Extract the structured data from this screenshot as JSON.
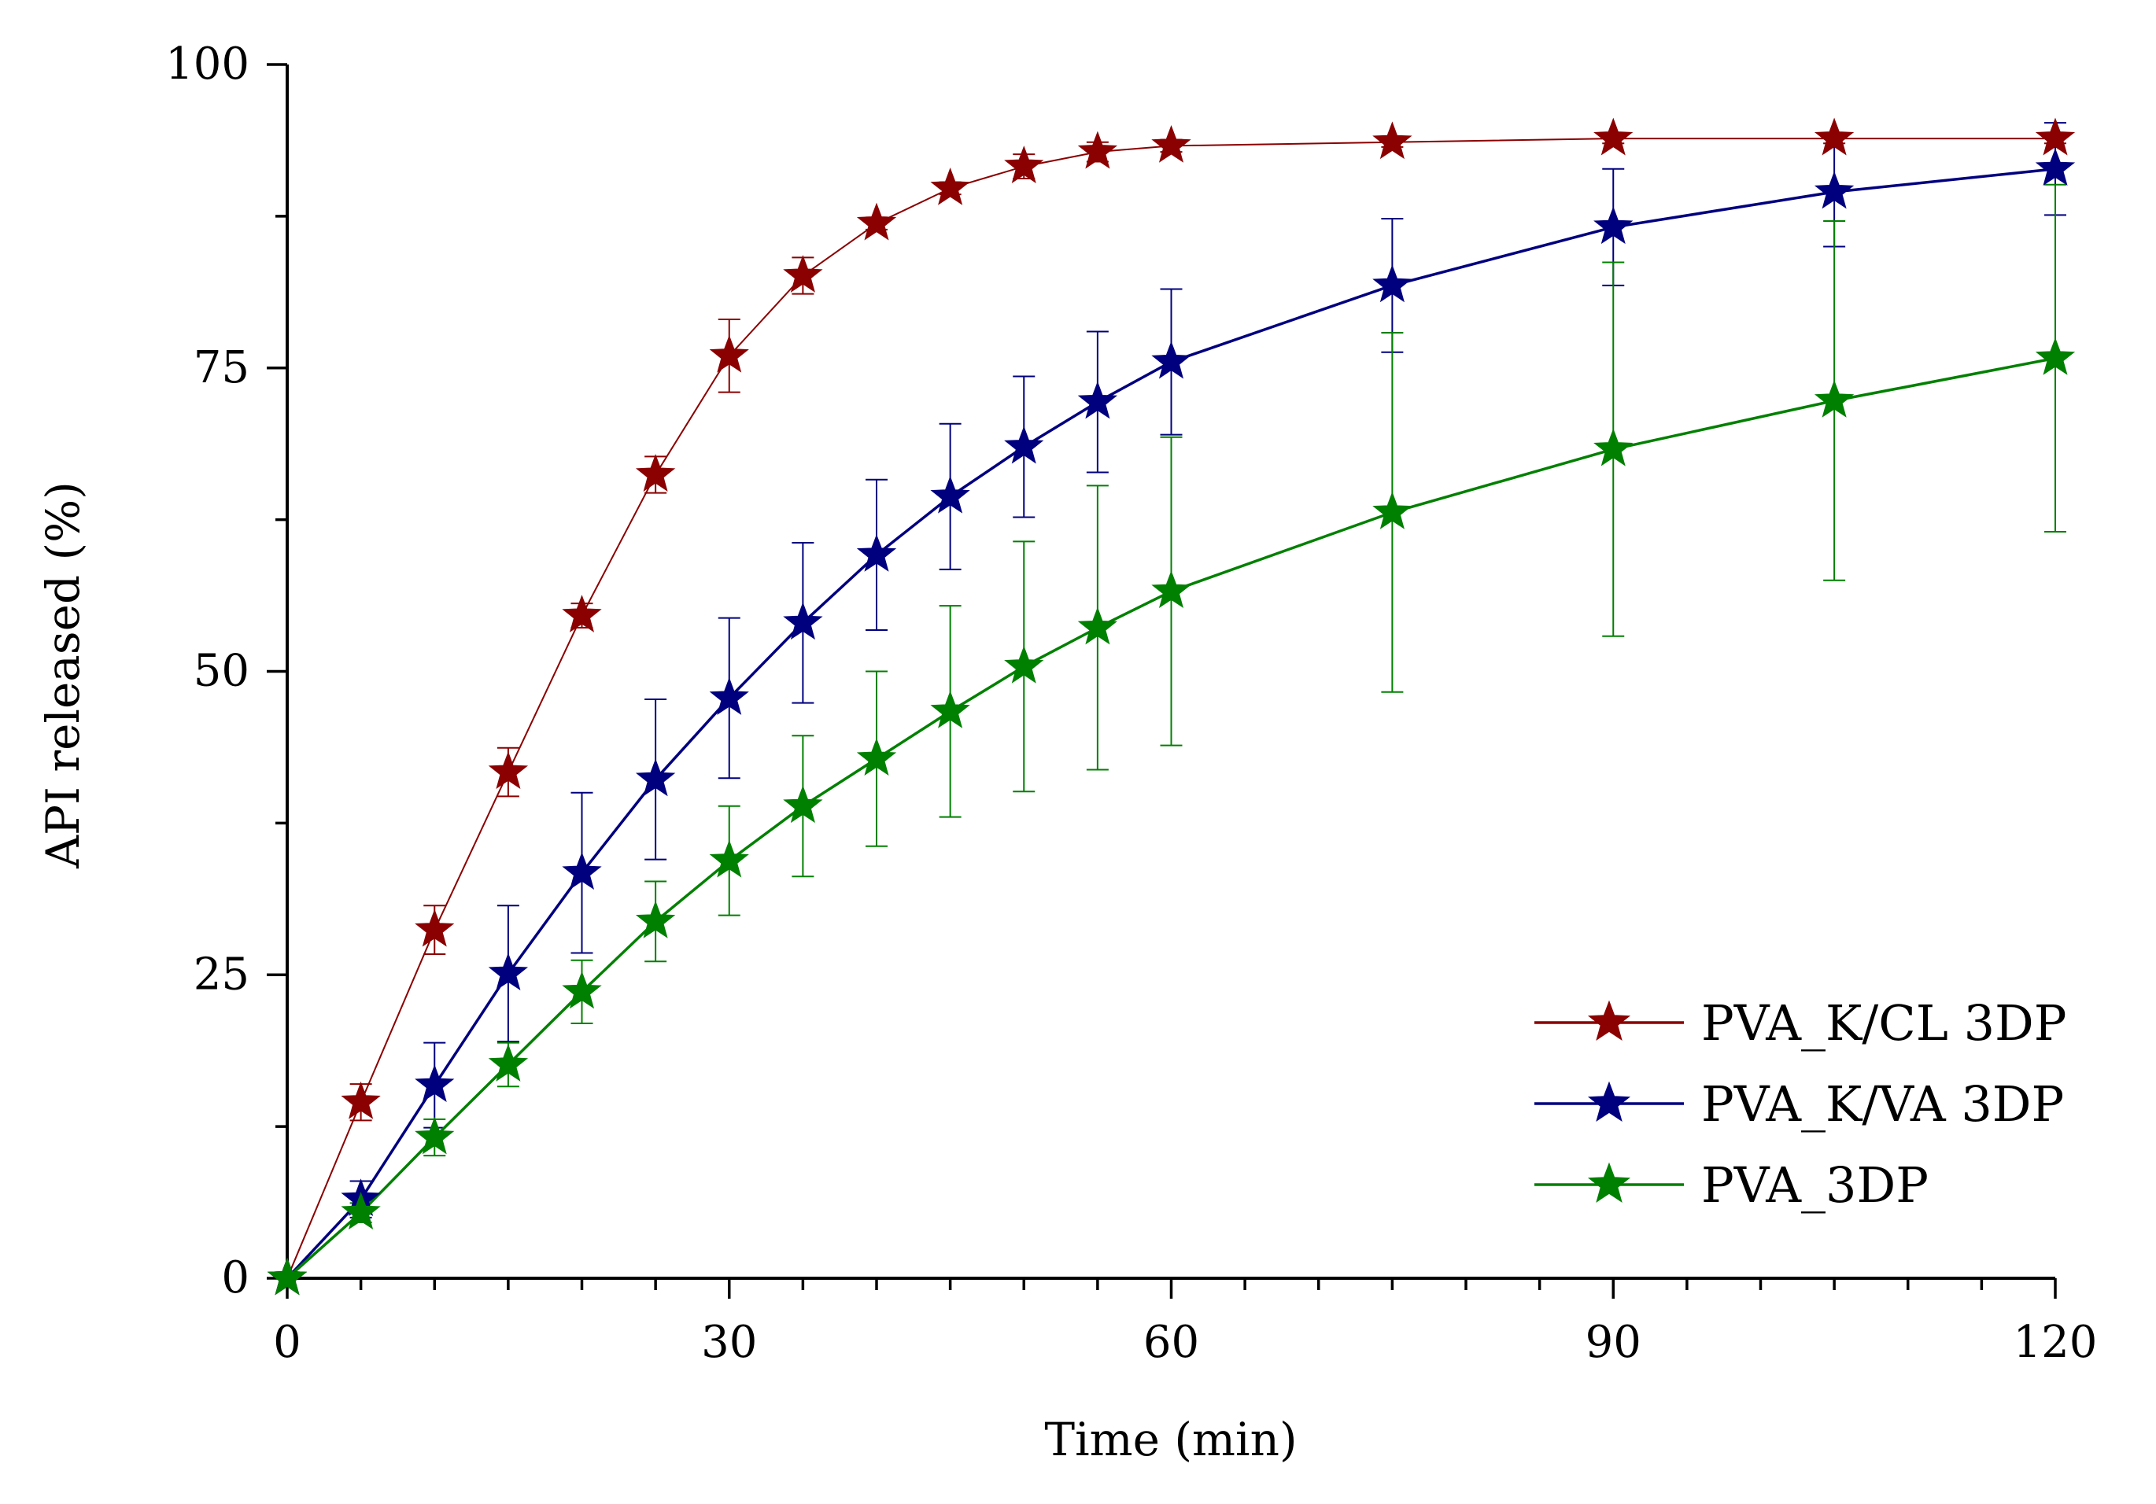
{
  "chart_data": {
    "type": "line",
    "title": "",
    "xlabel": "Time (min)",
    "ylabel": "API released (%)",
    "xlim": [
      0,
      120
    ],
    "ylim": [
      0,
      100
    ],
    "x_ticks": [
      0,
      30,
      60,
      90,
      120
    ],
    "y_ticks": [
      0,
      25,
      50,
      75,
      100
    ],
    "grid": false,
    "legend_position": "bottom-right",
    "series": [
      {
        "name": "PVA_K/CL 3DP",
        "color": "#8b0000",
        "x": [
          0,
          5,
          10,
          15,
          20,
          25,
          30,
          35,
          40,
          45,
          50,
          55,
          60,
          75,
          90,
          105,
          120
        ],
        "y": [
          0,
          14.5,
          28.7,
          41.7,
          54.6,
          66.2,
          76.0,
          82.6,
          86.9,
          89.8,
          91.6,
          92.8,
          93.3,
          93.6,
          93.9,
          93.9,
          93.9
        ],
        "err": [
          0,
          1.5,
          2.0,
          2.0,
          1.0,
          1.5,
          3.0,
          1.5,
          0.5,
          0.5,
          1.0,
          0.8,
          0.5,
          0.4,
          0.4,
          0.4,
          0.4
        ]
      },
      {
        "name": "PVA_K/VA 3DP",
        "color": "#00007f",
        "x": [
          0,
          5,
          10,
          15,
          20,
          25,
          30,
          35,
          40,
          45,
          50,
          55,
          60,
          75,
          90,
          105,
          120
        ],
        "y": [
          0,
          6.5,
          15.9,
          25.1,
          33.4,
          41.1,
          47.8,
          54.0,
          59.6,
          64.4,
          68.5,
          72.2,
          75.5,
          81.8,
          86.6,
          89.5,
          91.4
        ],
        "err": [
          0,
          1.5,
          3.5,
          5.6,
          6.6,
          6.6,
          6.6,
          6.6,
          6.2,
          6.0,
          5.8,
          5.8,
          6.0,
          5.5,
          4.8,
          4.5,
          3.8
        ]
      },
      {
        "name": "PVA_3DP",
        "color": "#008000",
        "x": [
          0,
          5,
          10,
          15,
          20,
          25,
          30,
          35,
          40,
          45,
          50,
          55,
          60,
          75,
          90,
          105,
          120
        ],
        "y": [
          0,
          5.4,
          11.6,
          17.6,
          23.6,
          29.4,
          34.4,
          38.9,
          42.8,
          46.7,
          50.4,
          53.6,
          56.6,
          63.1,
          68.3,
          72.3,
          75.8
        ],
        "err": [
          0,
          0.8,
          1.5,
          1.8,
          2.6,
          3.3,
          4.5,
          5.8,
          7.2,
          8.7,
          10.3,
          11.7,
          12.7,
          14.8,
          15.4,
          14.8,
          14.3
        ]
      }
    ]
  }
}
